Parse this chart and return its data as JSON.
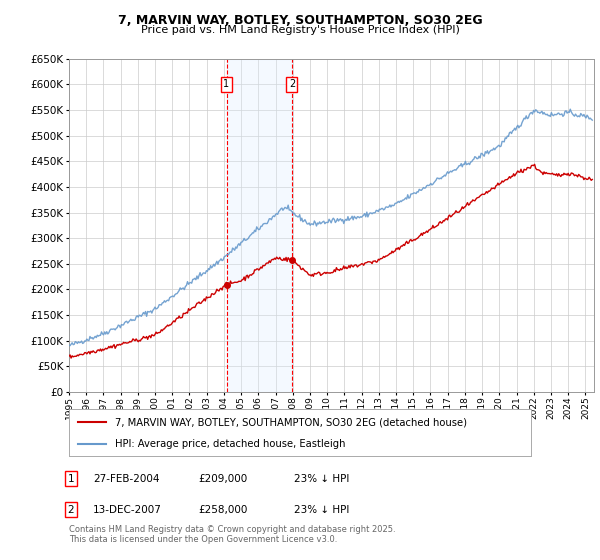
{
  "title1": "7, MARVIN WAY, BOTLEY, SOUTHAMPTON, SO30 2EG",
  "title2": "Price paid vs. HM Land Registry's House Price Index (HPI)",
  "ylabel_ticks": [
    0,
    50000,
    100000,
    150000,
    200000,
    250000,
    300000,
    350000,
    400000,
    450000,
    500000,
    550000,
    600000,
    650000
  ],
  "x_start_year": 1995,
  "x_end_year": 2025,
  "legend_line1": "7, MARVIN WAY, BOTLEY, SOUTHAMPTON, SO30 2EG (detached house)",
  "legend_line2": "HPI: Average price, detached house, Eastleigh",
  "annotation1_num": "1",
  "annotation1_date": "27-FEB-2004",
  "annotation1_price": "£209,000",
  "annotation1_hpi": "23% ↓ HPI",
  "annotation2_num": "2",
  "annotation2_date": "13-DEC-2007",
  "annotation2_price": "£258,000",
  "annotation2_hpi": "23% ↓ HPI",
  "footer": "Contains HM Land Registry data © Crown copyright and database right 2025.\nThis data is licensed under the Open Government Licence v3.0.",
  "sale1_year": 2004.15,
  "sale1_price": 209000,
  "sale2_year": 2007.95,
  "sale2_price": 258000,
  "red_color": "#cc0000",
  "blue_color": "#6699cc",
  "shade_color": "#ddeeff",
  "bg_color": "#ffffff",
  "grid_color": "#cccccc"
}
